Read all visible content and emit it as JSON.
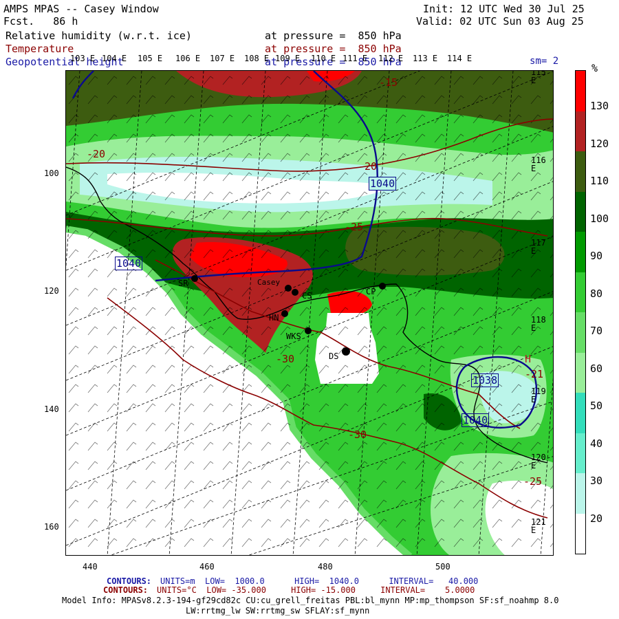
{
  "header": {
    "title": "AMPS MPAS -- Casey Window",
    "fcst": "Fcst.   86 h",
    "init": "Init: 12 UTC Wed 30 Jul 25",
    "valid": "Valid: 02 UTC Sun 03 Aug 25"
  },
  "fields": {
    "rh_label": "Relative humidity (w.r.t. ice)",
    "rh_level": "at pressure =  850 hPa",
    "temp_label": "Temperature",
    "temp_level": "at pressure =  850 hPa",
    "geo_label": "Geopotential height",
    "geo_level": "at pressure =  850 hPa",
    "smoothing": "sm= 2"
  },
  "colorbar": {
    "unit": "%",
    "ticks": [
      "130",
      "120",
      "110",
      "100",
      "90",
      "80",
      "70",
      "60",
      "50",
      "40",
      "30",
      "20"
    ],
    "colors": [
      "#ff0000",
      "#b22222",
      "#3d5c10",
      "#006400",
      "#009a00",
      "#33cc33",
      "#66dd66",
      "#99ee99",
      "#33ddbb",
      "#66eecc",
      "#bbf5ea",
      "#ffffff"
    ]
  },
  "axes": {
    "x_ticks": [
      "440",
      "460",
      "480",
      "500"
    ],
    "y_ticks": [
      "100",
      "120",
      "140",
      "160"
    ],
    "top_lon": [
      "103 E",
      "104 E",
      "105 E",
      "106 E",
      "107 E",
      "108 E",
      "109 E",
      "110 E",
      "111 E",
      "112 E",
      "113 E",
      "114 E"
    ],
    "right_lon": [
      "115 E",
      "116 E",
      "117 E",
      "118 E",
      "119 E",
      "120 E",
      "121 E"
    ]
  },
  "map": {
    "stations": [
      "SR",
      "Casey",
      "CS",
      "HN",
      "WKS",
      "DS",
      "CP"
    ],
    "height_labels": [
      "1040",
      "1040",
      "1040",
      "1038",
      "1040"
    ],
    "temp_labels": [
      "-15",
      "-20",
      "-20",
      "-25",
      "-30",
      "-30",
      "-25",
      "-21"
    ],
    "high_marker": "H"
  },
  "footer": {
    "line1_prefix": "CONTOURS:",
    "line1": "UNITS=m  LOW=  1000.0      HIGH=  1040.0      INTERVAL=   40.000",
    "line2_prefix": "CONTOURS:",
    "line2": "UNITS=°C  LOW= -35.000     HIGH= -15.000     INTERVAL=    5.0000",
    "model": "Model Info: MPASv8.2.3-194-gf29cd82c CU:cu_grell_freitas PBL:bl_mynn MP:mp_thompson SF:sf_noahmp 8.0",
    "model2": "LW:rrtmg_lw SW:rrtmg_sw SFLAY:sf_mynn"
  }
}
